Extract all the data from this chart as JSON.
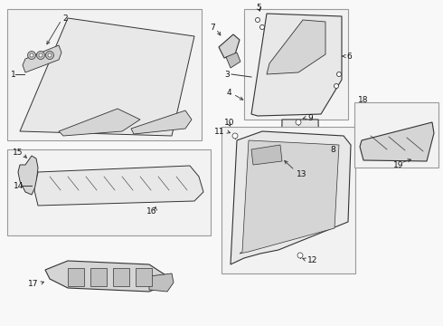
{
  "bg_color": "#f8f8f8",
  "line_color": "#333333",
  "fill_light": "#e8e8e8",
  "fill_mid": "#d5d5d5",
  "fill_dark": "#c0c0c0",
  "box_edge": "#999999",
  "box_fill": "#f2f2f2",
  "label_color": "#111111",
  "label_fs": 6.5
}
